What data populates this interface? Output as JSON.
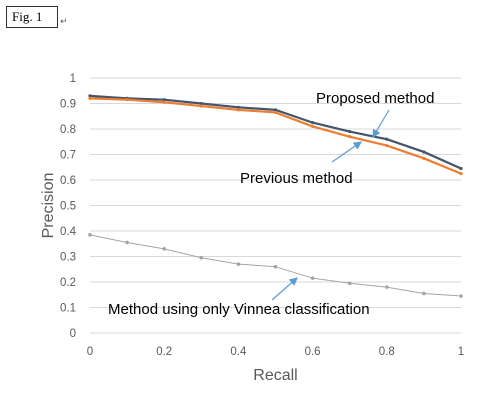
{
  "figure": {
    "label": "Fig. 1",
    "mark": "↵"
  },
  "colors": {
    "proposed": "#44546a",
    "previous": "#ed7d31",
    "vinnea": "#a5a5a5",
    "arrow": "#5b9bd5",
    "grid": "#d9d9d9"
  },
  "chart_data": {
    "type": "line",
    "xlabel": "Recall",
    "ylabel": "Precision",
    "xlim": [
      0,
      1
    ],
    "ylim": [
      0,
      1
    ],
    "x": [
      0,
      0.1,
      0.2,
      0.3,
      0.4,
      0.5,
      0.6,
      0.7,
      0.8,
      0.9,
      1.0
    ],
    "xticks": [
      "0",
      "0.2",
      "0.4",
      "0.6",
      "0.8",
      "1"
    ],
    "xtick_values": [
      0,
      0.2,
      0.4,
      0.6,
      0.8,
      1
    ],
    "yticks": [
      "0",
      "0.1",
      "0.2",
      "0.3",
      "0.4",
      "0.5",
      "0.6",
      "0.7",
      "0.8",
      "0.9",
      "1"
    ],
    "ytick_values": [
      0,
      0.1,
      0.2,
      0.3,
      0.4,
      0.5,
      0.6,
      0.7,
      0.8,
      0.9,
      1
    ],
    "grid": "horizontal",
    "series": [
      {
        "key": "proposed",
        "values": [
          0.93,
          0.92,
          0.915,
          0.9,
          0.885,
          0.875,
          0.825,
          0.79,
          0.76,
          0.71,
          0.645
        ]
      },
      {
        "key": "previous",
        "values": [
          0.92,
          0.915,
          0.905,
          0.89,
          0.875,
          0.865,
          0.81,
          0.77,
          0.735,
          0.685,
          0.625
        ]
      },
      {
        "key": "vinnea",
        "values": [
          0.385,
          0.355,
          0.33,
          0.295,
          0.27,
          0.26,
          0.215,
          0.195,
          0.18,
          0.155,
          0.145
        ]
      }
    ],
    "annotations": [
      {
        "series": "proposed",
        "text": "Proposed method"
      },
      {
        "series": "previous",
        "text": "Previous method"
      },
      {
        "series": "vinnea",
        "text": "Method using only Vinnea classification"
      }
    ]
  }
}
